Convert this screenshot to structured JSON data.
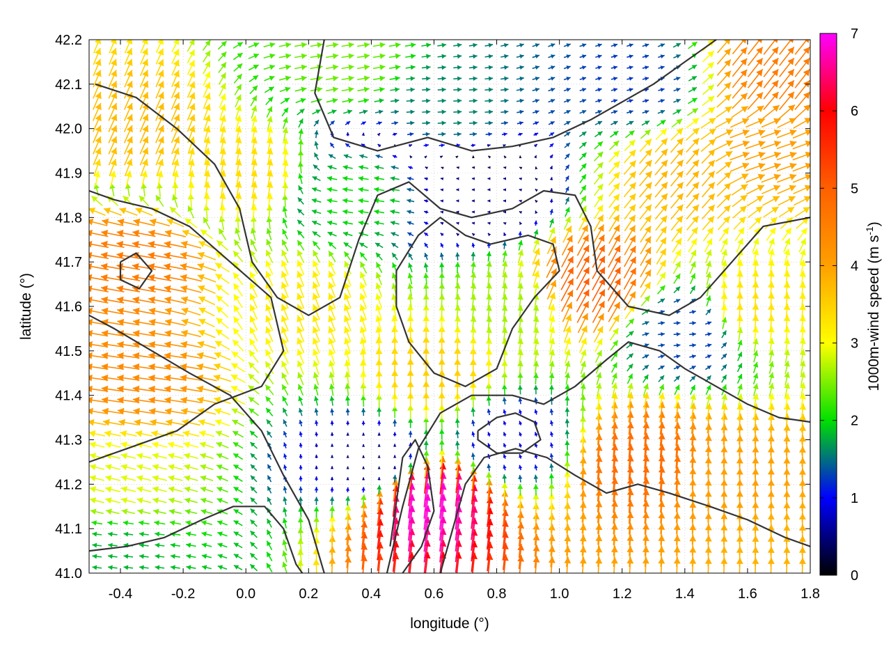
{
  "chart_data": {
    "type": "vector-field",
    "xlabel": "longitude (°)",
    "ylabel": "latitude (°)",
    "xlim": [
      -0.5,
      1.8
    ],
    "ylim": [
      41.0,
      42.2
    ],
    "xticks": [
      -0.4,
      -0.2,
      0.0,
      0.2,
      0.4,
      0.6,
      0.8,
      1.0,
      1.2,
      1.4,
      1.6,
      1.8
    ],
    "xtick_labels": [
      "-0.4",
      "-0.2",
      "0.0",
      "0.2",
      "0.4",
      "0.6",
      "0.8",
      "1.0",
      "1.2",
      "1.4",
      "1.6",
      "1.8"
    ],
    "yticks": [
      41.0,
      41.1,
      41.2,
      41.3,
      41.4,
      41.5,
      41.6,
      41.7,
      41.8,
      41.9,
      42.0,
      42.1,
      42.2
    ],
    "ytick_labels": [
      "41.0",
      "41.1",
      "41.2",
      "41.3",
      "41.4",
      "41.5",
      "41.6",
      "41.7",
      "41.8",
      "41.9",
      "42.0",
      "42.1",
      "42.2"
    ],
    "grid": true,
    "colorbar": {
      "label_main": "1000m-wind speed (m s",
      "label_sup": "-1",
      "label_close": ")",
      "range": [
        0,
        7
      ],
      "ticks": [
        0,
        1,
        2,
        3,
        4,
        5,
        6,
        7
      ],
      "tick_labels": [
        "0",
        "1",
        "2",
        "3",
        "4",
        "5",
        "6",
        "7"
      ],
      "stops": [
        {
          "v": 0,
          "color": "#000000"
        },
        {
          "v": 1,
          "color": "#0000ff"
        },
        {
          "v": 2,
          "color": "#00e000"
        },
        {
          "v": 3,
          "color": "#ffff00"
        },
        {
          "v": 4,
          "color": "#ffa000"
        },
        {
          "v": 5,
          "color": "#ff6000"
        },
        {
          "v": 6,
          "color": "#ff0000"
        },
        {
          "v": 7,
          "color": "#ff00ff"
        }
      ]
    },
    "wind_regimes": [
      {
        "lon": -0.35,
        "lat": 41.7,
        "u": -4.5,
        "v": 0.8
      },
      {
        "lon": -0.35,
        "lat": 41.45,
        "u": -4.3,
        "v": 0.6
      },
      {
        "lon": -0.4,
        "lat": 41.2,
        "u": -2.8,
        "v": 0.7
      },
      {
        "lon": -0.35,
        "lat": 42.0,
        "u": 1.5,
        "v": 3.4
      },
      {
        "lon": 0.0,
        "lat": 41.9,
        "u": 0.6,
        "v": 3.3
      },
      {
        "lon": 0.2,
        "lat": 41.6,
        "u": -1.2,
        "v": 3.0
      },
      {
        "lon": 0.3,
        "lat": 42.15,
        "u": 2.4,
        "v": 0.4
      },
      {
        "lon": 0.65,
        "lat": 42.05,
        "u": 1.6,
        "v": 0.1
      },
      {
        "lon": 0.75,
        "lat": 41.85,
        "u": -0.5,
        "v": 0.0
      },
      {
        "lon": 0.35,
        "lat": 41.85,
        "u": -2.0,
        "v": 0.3
      },
      {
        "lon": 0.6,
        "lat": 41.45,
        "u": 0.0,
        "v": 3.5
      },
      {
        "lon": 0.85,
        "lat": 41.6,
        "u": 0.3,
        "v": 2.6
      },
      {
        "lon": 0.58,
        "lat": 41.15,
        "u": 0.8,
        "v": 6.8
      },
      {
        "lon": 0.4,
        "lat": 41.25,
        "u": 0.0,
        "v": 0.4
      },
      {
        "lon": 0.85,
        "lat": 41.3,
        "u": -0.3,
        "v": 0.8
      },
      {
        "lon": 1.1,
        "lat": 41.65,
        "u": 2.4,
        "v": 4.4
      },
      {
        "lon": 1.25,
        "lat": 41.25,
        "u": 0.4,
        "v": 4.8
      },
      {
        "lon": 1.55,
        "lat": 41.2,
        "u": 0.1,
        "v": 4.0
      },
      {
        "lon": 1.6,
        "lat": 41.6,
        "u": 0.2,
        "v": 3.3
      },
      {
        "lon": 1.4,
        "lat": 41.9,
        "u": 2.4,
        "v": 2.9
      },
      {
        "lon": 1.65,
        "lat": 41.95,
        "u": 3.8,
        "v": 1.3
      },
      {
        "lon": 1.4,
        "lat": 41.55,
        "u": 1.3,
        "v": 0.1
      },
      {
        "lon": 1.25,
        "lat": 42.1,
        "u": 1.2,
        "v": 0.3
      },
      {
        "lon": 1.7,
        "lat": 42.12,
        "u": 2.8,
        "v": 3.6
      },
      {
        "lon": 1.7,
        "lat": 41.05,
        "u": 0.1,
        "v": 3.8
      },
      {
        "lon": -0.4,
        "lat": 41.05,
        "u": -1.8,
        "v": 0.2
      }
    ],
    "contours": [
      [
        [
          0.25,
          41.0
        ],
        [
          0.2,
          41.12
        ],
        [
          0.12,
          41.22
        ],
        [
          0.05,
          41.32
        ],
        [
          -0.05,
          41.4
        ],
        [
          -0.18,
          41.45
        ],
        [
          -0.3,
          41.5
        ],
        [
          -0.42,
          41.55
        ],
        [
          -0.5,
          41.58
        ]
      ],
      [
        [
          -0.5,
          41.25
        ],
        [
          -0.38,
          41.28
        ],
        [
          -0.22,
          41.32
        ],
        [
          -0.1,
          41.38
        ],
        [
          0.05,
          41.42
        ],
        [
          0.12,
          41.5
        ],
        [
          0.08,
          41.62
        ],
        [
          -0.05,
          41.7
        ],
        [
          -0.18,
          41.78
        ],
        [
          -0.3,
          41.82
        ],
        [
          -0.42,
          41.84
        ],
        [
          -0.5,
          41.86
        ]
      ],
      [
        [
          -0.48,
          42.1
        ],
        [
          -0.35,
          42.07
        ],
        [
          -0.22,
          42.0
        ],
        [
          -0.1,
          41.92
        ],
        [
          -0.02,
          41.82
        ],
        [
          0.02,
          41.7
        ],
        [
          0.1,
          41.62
        ],
        [
          0.2,
          41.58
        ],
        [
          0.3,
          41.62
        ],
        [
          0.36,
          41.75
        ],
        [
          0.42,
          41.85
        ],
        [
          0.52,
          41.88
        ],
        [
          0.62,
          41.82
        ],
        [
          0.72,
          41.8
        ],
        [
          0.85,
          41.82
        ],
        [
          0.95,
          41.86
        ],
        [
          1.05,
          41.85
        ],
        [
          1.1,
          41.78
        ],
        [
          1.12,
          41.68
        ],
        [
          1.22,
          41.6
        ],
        [
          1.35,
          41.58
        ],
        [
          1.45,
          41.62
        ],
        [
          1.55,
          41.7
        ],
        [
          1.65,
          41.78
        ],
        [
          1.8,
          41.8
        ]
      ],
      [
        [
          0.25,
          42.2
        ],
        [
          0.22,
          42.08
        ],
        [
          0.28,
          41.98
        ],
        [
          0.42,
          41.95
        ],
        [
          0.58,
          41.98
        ],
        [
          0.72,
          41.95
        ],
        [
          0.85,
          41.96
        ],
        [
          0.98,
          41.98
        ],
        [
          1.1,
          42.02
        ],
        [
          1.2,
          42.06
        ],
        [
          1.3,
          42.1
        ],
        [
          1.4,
          42.15
        ],
        [
          1.5,
          42.2
        ]
      ],
      [
        [
          0.48,
          41.68
        ],
        [
          0.55,
          41.76
        ],
        [
          0.62,
          41.8
        ],
        [
          0.7,
          41.76
        ],
        [
          0.78,
          41.74
        ],
        [
          0.9,
          41.76
        ],
        [
          0.98,
          41.74
        ],
        [
          1.0,
          41.68
        ],
        [
          0.92,
          41.62
        ],
        [
          0.85,
          41.55
        ],
        [
          0.8,
          41.46
        ],
        [
          0.7,
          41.42
        ],
        [
          0.6,
          41.45
        ],
        [
          0.52,
          41.52
        ],
        [
          0.48,
          41.6
        ],
        [
          0.48,
          41.68
        ]
      ],
      [
        [
          0.45,
          41.0
        ],
        [
          0.5,
          41.15
        ],
        [
          0.55,
          41.28
        ],
        [
          0.62,
          41.36
        ],
        [
          0.72,
          41.4
        ],
        [
          0.85,
          41.4
        ],
        [
          0.95,
          41.38
        ],
        [
          1.05,
          41.42
        ],
        [
          1.15,
          41.48
        ],
        [
          1.22,
          41.52
        ],
        [
          1.32,
          41.5
        ],
        [
          1.4,
          41.46
        ],
        [
          1.5,
          41.42
        ],
        [
          1.6,
          41.38
        ],
        [
          1.7,
          41.35
        ],
        [
          1.8,
          41.34
        ]
      ],
      [
        [
          0.62,
          41.0
        ],
        [
          0.66,
          41.1
        ],
        [
          0.7,
          41.2
        ],
        [
          0.76,
          41.26
        ],
        [
          0.86,
          41.28
        ],
        [
          0.96,
          41.26
        ],
        [
          1.05,
          41.22
        ],
        [
          1.15,
          41.18
        ],
        [
          1.25,
          41.2
        ],
        [
          1.35,
          41.18
        ],
        [
          1.48,
          41.15
        ],
        [
          1.6,
          41.12
        ],
        [
          1.72,
          41.08
        ],
        [
          1.8,
          41.06
        ]
      ],
      [
        [
          -0.5,
          41.05
        ],
        [
          -0.38,
          41.06
        ],
        [
          -0.26,
          41.08
        ],
        [
          -0.14,
          41.12
        ],
        [
          -0.04,
          41.15
        ],
        [
          0.06,
          41.15
        ],
        [
          0.12,
          41.1
        ],
        [
          0.16,
          41.02
        ],
        [
          0.18,
          41.0
        ]
      ],
      [
        [
          0.74,
          41.32
        ],
        [
          0.8,
          41.35
        ],
        [
          0.86,
          41.36
        ],
        [
          0.92,
          41.34
        ],
        [
          0.94,
          41.3
        ],
        [
          0.88,
          41.27
        ],
        [
          0.8,
          41.27
        ],
        [
          0.74,
          41.3
        ],
        [
          0.74,
          41.32
        ]
      ],
      [
        [
          -0.4,
          41.7
        ],
        [
          -0.35,
          41.72
        ],
        [
          -0.3,
          41.68
        ],
        [
          -0.34,
          41.64
        ],
        [
          -0.4,
          41.66
        ],
        [
          -0.4,
          41.7
        ]
      ],
      [
        [
          0.5,
          41.0
        ],
        [
          0.56,
          41.06
        ],
        [
          0.6,
          41.14
        ],
        [
          0.58,
          41.24
        ],
        [
          0.54,
          41.3
        ],
        [
          0.5,
          41.26
        ],
        [
          0.48,
          41.16
        ],
        [
          0.46,
          41.06
        ]
      ]
    ]
  }
}
